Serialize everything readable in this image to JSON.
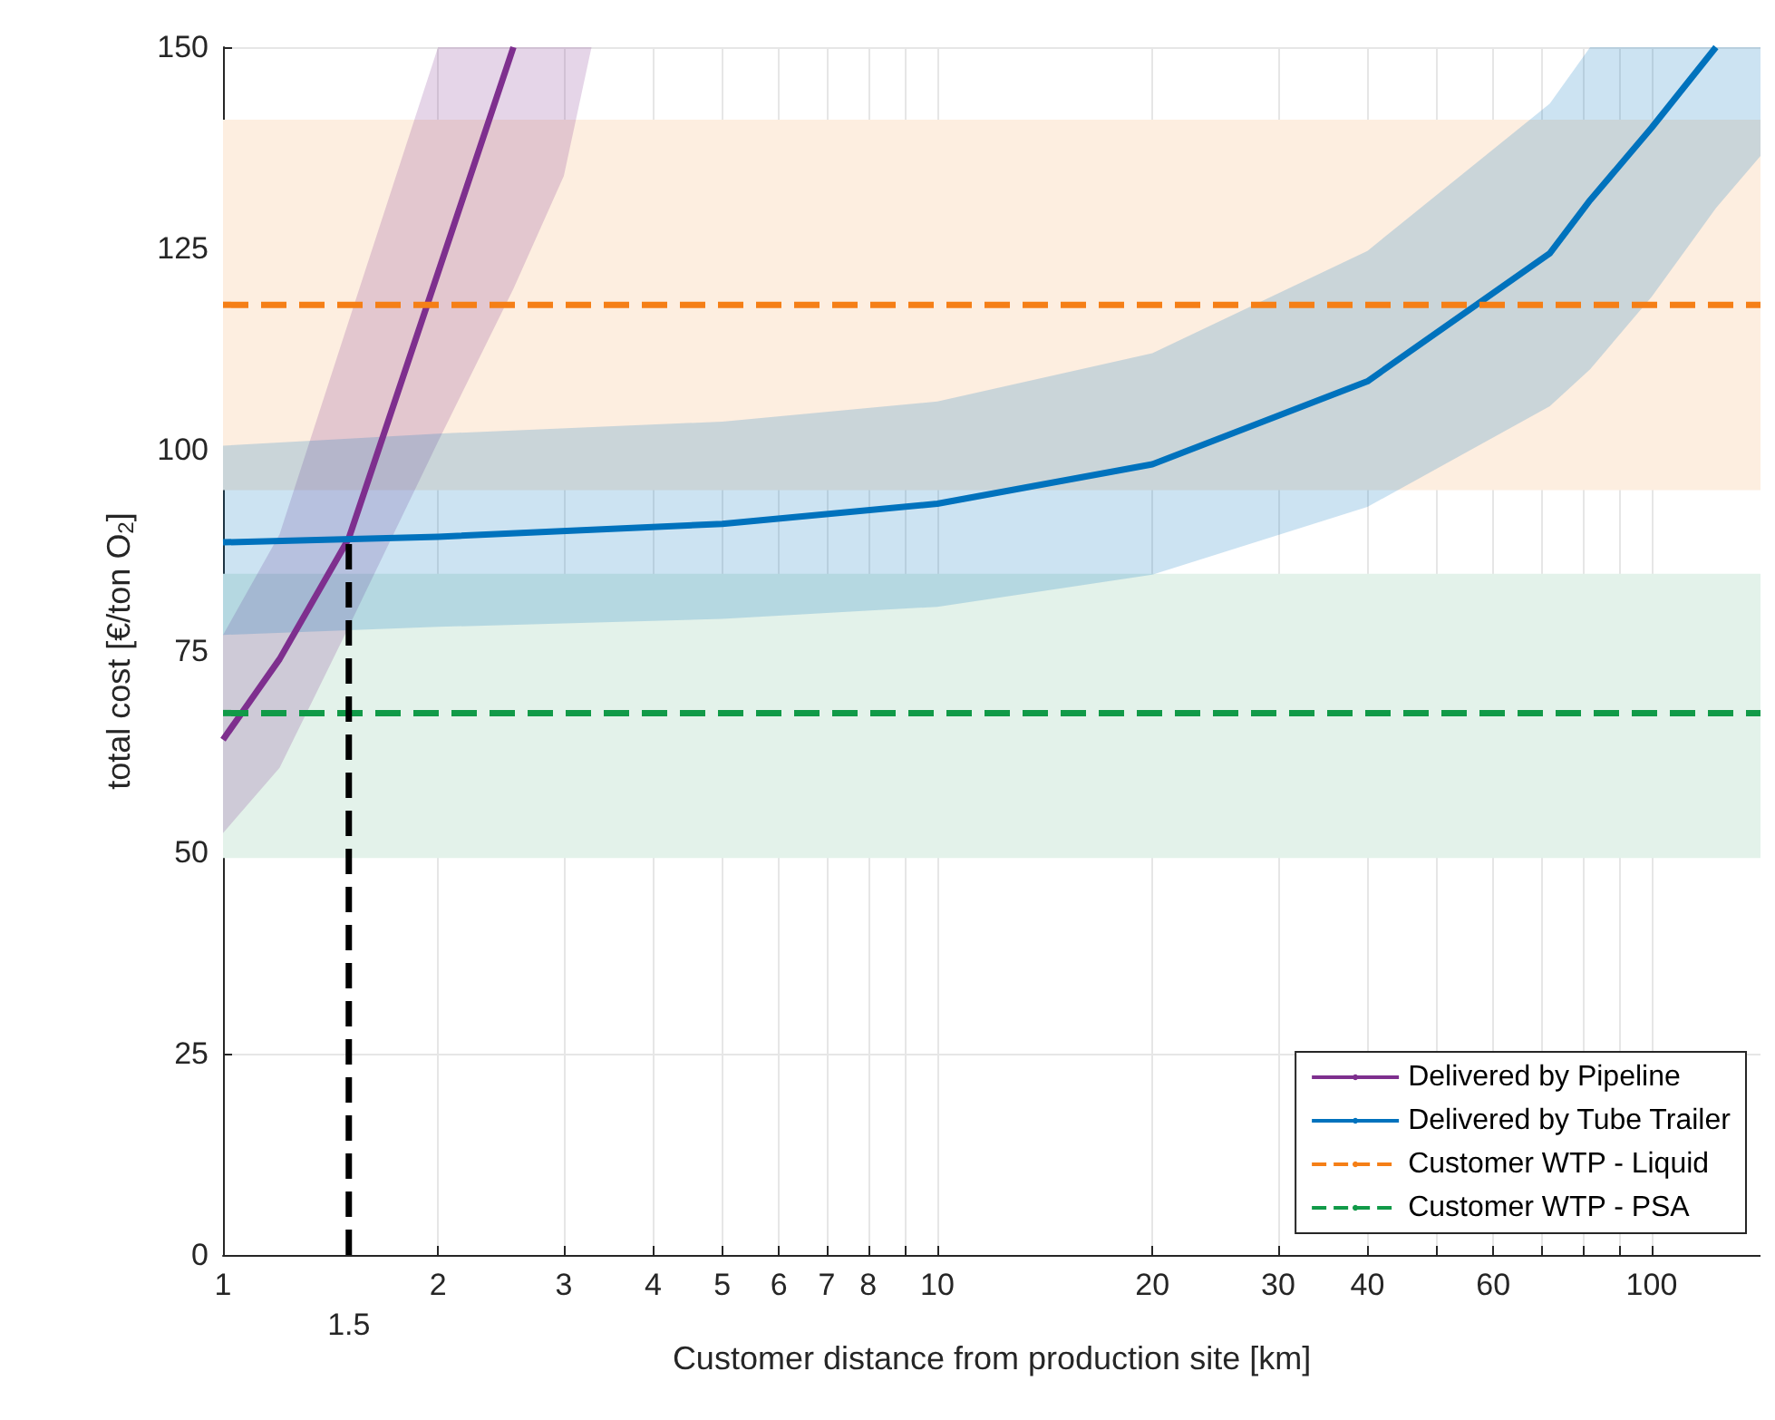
{
  "chart_data": {
    "type": "line",
    "xlabel": "Customer distance from production site [km]",
    "ylabel": "total cost [€/ton O$_{2}$]",
    "log": "x",
    "xlim": [
      1,
      142
    ],
    "ylim": [
      0,
      150
    ],
    "xticks": [
      1,
      2,
      3,
      4,
      5,
      6,
      7,
      8,
      {
        "value": 9,
        "label": null
      },
      10,
      20,
      30,
      40,
      {
        "value": 50,
        "label": null
      },
      60,
      {
        "value": 70,
        "label": null
      },
      {
        "value": 80,
        "label": null
      },
      {
        "value": 90,
        "label": null
      },
      100
    ],
    "yticks": [
      0,
      25,
      50,
      75,
      100,
      125,
      150
    ],
    "grid": true,
    "legend": "bottom right",
    "marker": "none",
    "bands": [
      {
        "axis": "y",
        "from": 95,
        "to": 141,
        "color": "#fdeee0"
      },
      {
        "axis": "y",
        "from": 49.3,
        "to": 84.6,
        "color": "#e3f2ea"
      }
    ],
    "series": [
      {
        "name": "Delivered by Pipeline",
        "color": "#7e2f8e",
        "x": [
          1,
          1.2,
          1.5,
          2,
          2.55,
          3,
          3.28
        ],
        "values": [
          64,
          74,
          89,
          122,
          150,
          null,
          null
        ],
        "lower": [
          52.4,
          60.5,
          78,
          101,
          120,
          134,
          150
        ],
        "upper": [
          77,
          89.5,
          116,
          150,
          150,
          150,
          150
        ]
      },
      {
        "name": "Delivered by Tube Trailer",
        "color": "#0072bd",
        "x": [
          1,
          2,
          5,
          10,
          20,
          40,
          72,
          82,
          100,
          123,
          142
        ],
        "values": [
          88.5,
          89.2,
          90.8,
          93.3,
          98.2,
          108.5,
          124.4,
          131,
          140,
          150,
          null
        ],
        "lower": [
          77,
          78,
          79,
          80.5,
          84.5,
          92.9,
          105.4,
          110,
          119,
          130,
          136.5
        ],
        "upper": [
          100.5,
          102,
          103.5,
          106,
          112,
          124.7,
          143,
          150,
          150,
          150,
          150
        ]
      },
      {
        "name": "Customer WTP - Liquid",
        "color": "#f57f17",
        "line_style": "dashed",
        "x": [
          1,
          142
        ],
        "values": [
          118,
          118
        ]
      },
      {
        "name": "Customer WTP - PSA",
        "color": "#119a48",
        "line_style": "dashed",
        "x": [
          1,
          142
        ],
        "values": [
          67.3,
          67.3
        ]
      },
      {
        "color": "#000000",
        "line_style": "dashed",
        "x": [
          1.5,
          1.5
        ],
        "values": [
          0,
          89
        ]
      }
    ],
    "annotations": [
      {
        "text": "1.5",
        "x": 1.5,
        "y": 0
      }
    ]
  }
}
